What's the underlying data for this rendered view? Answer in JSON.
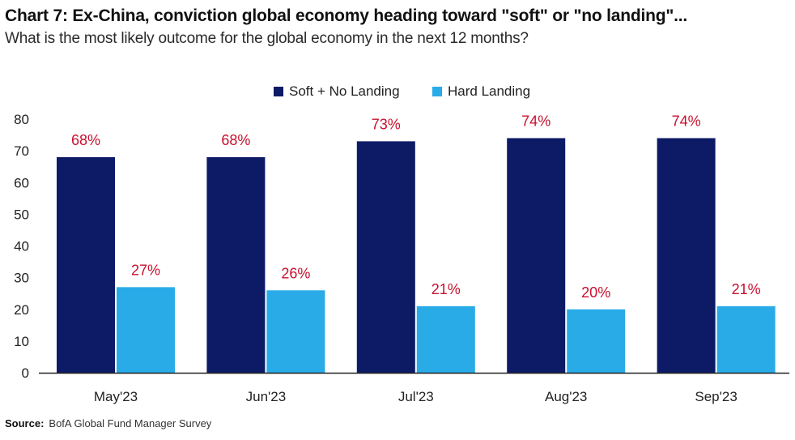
{
  "title": "Chart 7: Ex-China, conviction global economy heading toward \"soft\" or \"no landing\"...",
  "subtitle": "What is the most likely outcome for the global economy in the next 12 months?",
  "source": {
    "label": "Source:",
    "text": "BofA Global Fund Manager Survey"
  },
  "colors": {
    "soft_no_landing": "#0d1a66",
    "hard_landing": "#29abe8",
    "data_label": "#c8102e",
    "axis": "#222222"
  },
  "chart_data": {
    "type": "bar",
    "categories": [
      "May'23",
      "Jun'23",
      "Jul'23",
      "Aug'23",
      "Sep'23"
    ],
    "series": [
      {
        "name": "Soft + No Landing",
        "values": [
          68,
          68,
          73,
          74,
          74
        ],
        "labels": [
          "68%",
          "68%",
          "73%",
          "74%",
          "74%"
        ]
      },
      {
        "name": "Hard Landing",
        "values": [
          27,
          26,
          21,
          20,
          21
        ],
        "labels": [
          "27%",
          "26%",
          "21%",
          "20%",
          "21%"
        ]
      }
    ],
    "yticks": [
      "0",
      "10",
      "20",
      "30",
      "40",
      "50",
      "60",
      "70",
      "80"
    ],
    "ylim": [
      0,
      80
    ],
    "grid": false,
    "legend": "top-center",
    "xlabel": "",
    "ylabel": ""
  }
}
